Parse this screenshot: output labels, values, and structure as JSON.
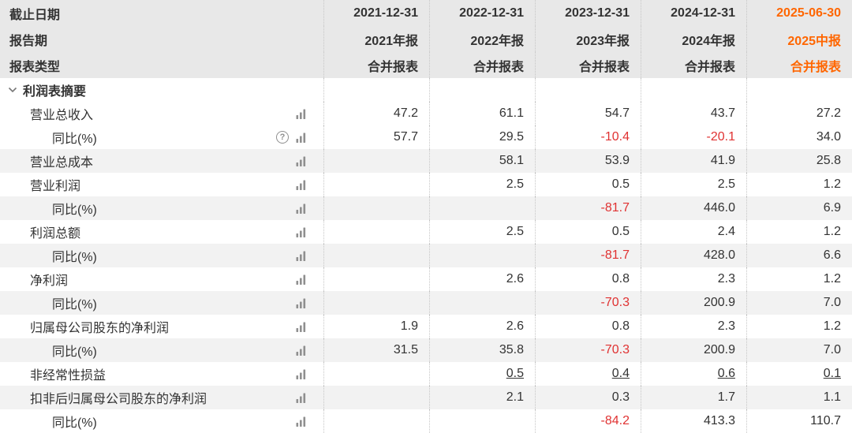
{
  "table": {
    "header_rows": [
      {
        "label": "截止日期",
        "values": [
          "2021-12-31",
          "2022-12-31",
          "2023-12-31",
          "2024-12-31",
          "2025-06-30"
        ]
      },
      {
        "label": "报告期",
        "values": [
          "2021年报",
          "2022年报",
          "2023年报",
          "2024年报",
          "2025中报"
        ]
      },
      {
        "label": "报表类型",
        "values": [
          "合并报表",
          "合并报表",
          "合并报表",
          "合并报表",
          "合并报表"
        ]
      }
    ],
    "section_title": "利润表摘要",
    "rows": [
      {
        "label": "营业总收入",
        "indent": 1,
        "help": false,
        "chart": true,
        "underline": false,
        "values": [
          "47.2",
          "61.1",
          "54.7",
          "43.7",
          "27.2"
        ]
      },
      {
        "label": "同比(%)",
        "indent": 2,
        "help": true,
        "chart": true,
        "underline": false,
        "values": [
          "57.7",
          "29.5",
          "-10.4",
          "-20.1",
          "34.0"
        ]
      },
      {
        "label": "营业总成本",
        "indent": 1,
        "help": false,
        "chart": true,
        "underline": false,
        "values": [
          "",
          "58.1",
          "53.9",
          "41.9",
          "25.8"
        ]
      },
      {
        "label": "营业利润",
        "indent": 1,
        "help": false,
        "chart": true,
        "underline": false,
        "values": [
          "",
          "2.5",
          "0.5",
          "2.5",
          "1.2"
        ]
      },
      {
        "label": "同比(%)",
        "indent": 2,
        "help": false,
        "chart": true,
        "underline": false,
        "values": [
          "",
          "",
          "-81.7",
          "446.0",
          "6.9"
        ]
      },
      {
        "label": "利润总额",
        "indent": 1,
        "help": false,
        "chart": true,
        "underline": false,
        "values": [
          "",
          "2.5",
          "0.5",
          "2.4",
          "1.2"
        ]
      },
      {
        "label": "同比(%)",
        "indent": 2,
        "help": false,
        "chart": true,
        "underline": false,
        "values": [
          "",
          "",
          "-81.7",
          "428.0",
          "6.6"
        ]
      },
      {
        "label": "净利润",
        "indent": 1,
        "help": false,
        "chart": true,
        "underline": false,
        "values": [
          "",
          "2.6",
          "0.8",
          "2.3",
          "1.2"
        ]
      },
      {
        "label": "同比(%)",
        "indent": 2,
        "help": false,
        "chart": true,
        "underline": false,
        "values": [
          "",
          "",
          "-70.3",
          "200.9",
          "7.0"
        ]
      },
      {
        "label": "归属母公司股东的净利润",
        "indent": 1,
        "help": false,
        "chart": true,
        "underline": false,
        "values": [
          "1.9",
          "2.6",
          "0.8",
          "2.3",
          "1.2"
        ]
      },
      {
        "label": "同比(%)",
        "indent": 2,
        "help": false,
        "chart": true,
        "underline": false,
        "values": [
          "31.5",
          "35.8",
          "-70.3",
          "200.9",
          "7.0"
        ]
      },
      {
        "label": "非经常性损益",
        "indent": 1,
        "help": false,
        "chart": true,
        "underline": true,
        "values": [
          "",
          "0.5",
          "0.4",
          "0.6",
          "0.1"
        ]
      },
      {
        "label": "扣非后归属母公司股东的净利润",
        "indent": 1,
        "help": false,
        "chart": true,
        "underline": false,
        "values": [
          "",
          "2.1",
          "0.3",
          "1.7",
          "1.1"
        ]
      },
      {
        "label": "同比(%)",
        "indent": 2,
        "help": false,
        "chart": true,
        "underline": false,
        "values": [
          "",
          "",
          "-84.2",
          "413.3",
          "110.7"
        ]
      }
    ]
  },
  "colors": {
    "header_bg": "#e8e8e8",
    "row_alt_bg": "#f2f2f2",
    "accent_orange": "#ff6600",
    "negative_red": "#e03232",
    "text": "#333333"
  }
}
